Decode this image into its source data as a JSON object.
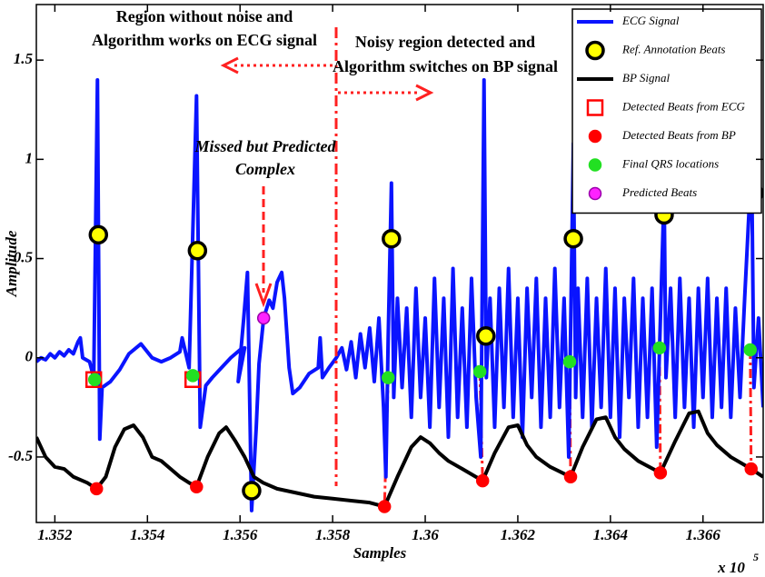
{
  "chart_data": {
    "type": "line",
    "x_label": "Samples",
    "y_label": "Amplitude",
    "x_multiplier": "x 10",
    "x_multiplier_exponent": "5",
    "xlim": [
      1.3516,
      1.3673
    ],
    "ylim": [
      -0.83,
      1.78
    ],
    "xticks": [
      1.352,
      1.354,
      1.356,
      1.358,
      1.36,
      1.362,
      1.364,
      1.366
    ],
    "yticks": [
      -0.5,
      0,
      0.5,
      1,
      1.5
    ],
    "legend": "upper right",
    "annotations": [
      [
        "Region without noise and",
        "Algorithm works on ECG signal"
      ],
      [
        "Noisy region detected and",
        "Algorithm switches on BP signal"
      ],
      [
        "Missed but Predicted",
        "Complex"
      ]
    ],
    "series": [
      {
        "name": "ECG Signal",
        "style": "line",
        "color": "#0a14ff",
        "x": [
          1.3516,
          1.3517,
          1.3518,
          1.3519,
          1.352,
          1.3521,
          1.3522,
          1.3523,
          1.3524,
          1.3525,
          1.35255,
          1.3526,
          1.35275,
          1.35284,
          1.35292,
          1.35297,
          1.35302,
          1.3532,
          1.3534,
          1.3536,
          1.35386,
          1.3541,
          1.3543,
          1.3545,
          1.3547,
          1.35475,
          1.3549,
          1.35506,
          1.35514,
          1.35526,
          1.3554,
          1.3556,
          1.3558,
          1.356,
          1.3561,
          1.35596,
          1.35608,
          1.35616,
          1.35625,
          1.35635,
          1.35641,
          1.35651,
          1.35663,
          1.35671,
          1.3568,
          1.3569,
          1.35696,
          1.35706,
          1.35714,
          1.35729,
          1.35749,
          1.35769,
          1.35773,
          1.35778,
          1.35792,
          1.35808,
          1.3582,
          1.3583,
          1.3584,
          1.3585,
          1.3586,
          1.3587,
          1.3588,
          1.3589,
          1.359,
          1.3591,
          1.35915,
          1.3592,
          1.35927,
          1.35932,
          1.3594,
          1.3595,
          1.3596,
          1.3597,
          1.3598,
          1.3599,
          1.36,
          1.3601,
          1.3602,
          1.3603,
          1.3604,
          1.3605,
          1.3606,
          1.3607,
          1.3608,
          1.3609,
          1.361,
          1.3611,
          1.3612,
          1.36127,
          1.36132,
          1.3614,
          1.3615,
          1.3616,
          1.3617,
          1.3618,
          1.3619,
          1.362,
          1.3621,
          1.3622,
          1.3623,
          1.3624,
          1.3625,
          1.3626,
          1.3627,
          1.3628,
          1.3629,
          1.363,
          1.3631,
          1.3632,
          1.36325,
          1.3633,
          1.3634,
          1.3635,
          1.3636,
          1.3637,
          1.3638,
          1.3639,
          1.364,
          1.3641,
          1.3642,
          1.3643,
          1.3644,
          1.3645,
          1.3646,
          1.3647,
          1.3648,
          1.3649,
          1.365,
          1.36516,
          1.3652,
          1.3653,
          1.3654,
          1.3655,
          1.3656,
          1.3657,
          1.3658,
          1.3659,
          1.366,
          1.3661,
          1.3662,
          1.3663,
          1.3664,
          1.3665,
          1.3666,
          1.3667,
          1.3668,
          1.3669,
          1.36705,
          1.3671,
          1.3672,
          1.3673
        ],
        "values": [
          -0.02,
          0.0,
          -0.01,
          0.02,
          0.0,
          0.03,
          0.01,
          0.04,
          0.02,
          0.08,
          0.1,
          0.0,
          -0.02,
          -0.1,
          1.4,
          -0.41,
          -0.15,
          -0.12,
          -0.06,
          0.02,
          0.07,
          0.0,
          -0.02,
          0.0,
          0.03,
          0.1,
          -0.05,
          1.32,
          -0.35,
          -0.14,
          -0.1,
          -0.05,
          0.0,
          0.04,
          0.05,
          -0.12,
          0.2,
          0.43,
          -0.77,
          -0.35,
          -0.03,
          0.2,
          0.29,
          0.25,
          0.38,
          0.43,
          0.3,
          -0.05,
          -0.18,
          -0.15,
          -0.08,
          -0.05,
          0.1,
          -0.1,
          -0.05,
          0.0,
          0.05,
          -0.06,
          0.08,
          -0.1,
          0.12,
          -0.05,
          0.15,
          -0.12,
          0.2,
          -0.25,
          -0.6,
          0.1,
          0.88,
          -0.2,
          0.3,
          -0.15,
          0.25,
          -0.3,
          0.35,
          -0.2,
          0.2,
          -0.35,
          0.4,
          -0.25,
          0.3,
          -0.4,
          0.45,
          -0.3,
          0.25,
          -0.35,
          0.4,
          -0.2,
          -0.5,
          1.4,
          -0.1,
          0.3,
          -0.35,
          0.35,
          -0.25,
          0.45,
          -0.3,
          0.3,
          -0.4,
          0.35,
          -0.2,
          0.4,
          -0.35,
          0.3,
          -0.3,
          0.45,
          -0.25,
          0.3,
          -0.5,
          1.08,
          -0.2,
          0.35,
          -0.3,
          0.4,
          -0.35,
          0.3,
          -0.25,
          0.45,
          -0.3,
          0.35,
          -0.4,
          0.3,
          -0.2,
          0.4,
          -0.35,
          0.3,
          -0.3,
          0.35,
          -0.45,
          0.84,
          -0.1,
          0.35,
          -0.3,
          0.4,
          -0.25,
          0.3,
          -0.35,
          0.35,
          -0.2,
          0.4,
          -0.3,
          0.3,
          -0.25,
          0.35,
          -0.3,
          0.25,
          -0.2,
          0.3,
          1.0,
          -0.15,
          0.2,
          -0.25
        ]
      },
      {
        "name": "Ref. Annotation Beats",
        "style": "circle",
        "color": "#ffff00",
        "edgecolor": "#000000",
        "x": [
          1.35294,
          1.35508,
          1.35625,
          1.35927,
          1.36131,
          1.3632,
          1.36516,
          1.3671
        ],
        "values": [
          0.62,
          0.54,
          -0.67,
          0.6,
          0.11,
          0.6,
          0.72,
          0.83
        ]
      },
      {
        "name": "BP Signal",
        "style": "line",
        "color": "#000000",
        "x": [
          1.3516,
          1.3518,
          1.352,
          1.3522,
          1.3524,
          1.3527,
          1.3529,
          1.3531,
          1.3533,
          1.3535,
          1.3537,
          1.3539,
          1.3541,
          1.3543,
          1.3545,
          1.3547,
          1.3549,
          1.35506,
          1.3553,
          1.35555,
          1.3557,
          1.3559,
          1.3561,
          1.3563,
          1.3565,
          1.3568,
          1.3572,
          1.3576,
          1.358,
          1.3584,
          1.3588,
          1.35912,
          1.3594,
          1.3597,
          1.3599,
          1.3601,
          1.3603,
          1.3605,
          1.3608,
          1.36124,
          1.3615,
          1.3618,
          1.362,
          1.3622,
          1.3624,
          1.3627,
          1.36314,
          1.3634,
          1.3637,
          1.3639,
          1.3641,
          1.3643,
          1.3646,
          1.36508,
          1.3654,
          1.3657,
          1.3659,
          1.3661,
          1.3663,
          1.3666,
          1.36704,
          1.3673
        ],
        "values": [
          -0.4,
          -0.5,
          -0.55,
          -0.56,
          -0.6,
          -0.63,
          -0.66,
          -0.6,
          -0.45,
          -0.36,
          -0.34,
          -0.4,
          -0.5,
          -0.52,
          -0.56,
          -0.6,
          -0.63,
          -0.65,
          -0.5,
          -0.38,
          -0.35,
          -0.42,
          -0.5,
          -0.6,
          -0.63,
          -0.66,
          -0.68,
          -0.7,
          -0.71,
          -0.72,
          -0.73,
          -0.75,
          -0.6,
          -0.45,
          -0.4,
          -0.43,
          -0.48,
          -0.52,
          -0.56,
          -0.62,
          -0.48,
          -0.35,
          -0.34,
          -0.44,
          -0.5,
          -0.55,
          -0.6,
          -0.45,
          -0.31,
          -0.3,
          -0.4,
          -0.46,
          -0.52,
          -0.58,
          -0.42,
          -0.28,
          -0.27,
          -0.38,
          -0.44,
          -0.5,
          -0.56,
          -0.6
        ]
      },
      {
        "name": "Detected Beats from ECG",
        "style": "square",
        "color": "none",
        "edgecolor": "#ff0000",
        "x": [
          1.35284,
          1.35498
        ],
        "values": [
          -0.11,
          -0.11
        ]
      },
      {
        "name": "Detected Beats from BP",
        "style": "dot",
        "color": "#ff0000",
        "edgecolor": "#ff0000",
        "x": [
          1.3529,
          1.35506,
          1.35912,
          1.36124,
          1.36314,
          1.36508,
          1.36704
        ],
        "values": [
          -0.66,
          -0.65,
          -0.75,
          -0.62,
          -0.6,
          -0.58,
          -0.56
        ]
      },
      {
        "name": "Final QRS locations",
        "style": "dot",
        "color": "#22e022",
        "edgecolor": "#22e022",
        "x": [
          1.35286,
          1.35498,
          1.3592,
          1.36118,
          1.36312,
          1.36506,
          1.36702
        ],
        "values": [
          -0.11,
          -0.09,
          -0.1,
          -0.07,
          -0.02,
          0.05,
          0.04
        ]
      },
      {
        "name": "Predicted Beats",
        "style": "dot",
        "color": "#ff22ff",
        "edgecolor": "#9900aa",
        "x": [
          1.35651
        ],
        "values": [
          0.2
        ]
      }
    ]
  }
}
